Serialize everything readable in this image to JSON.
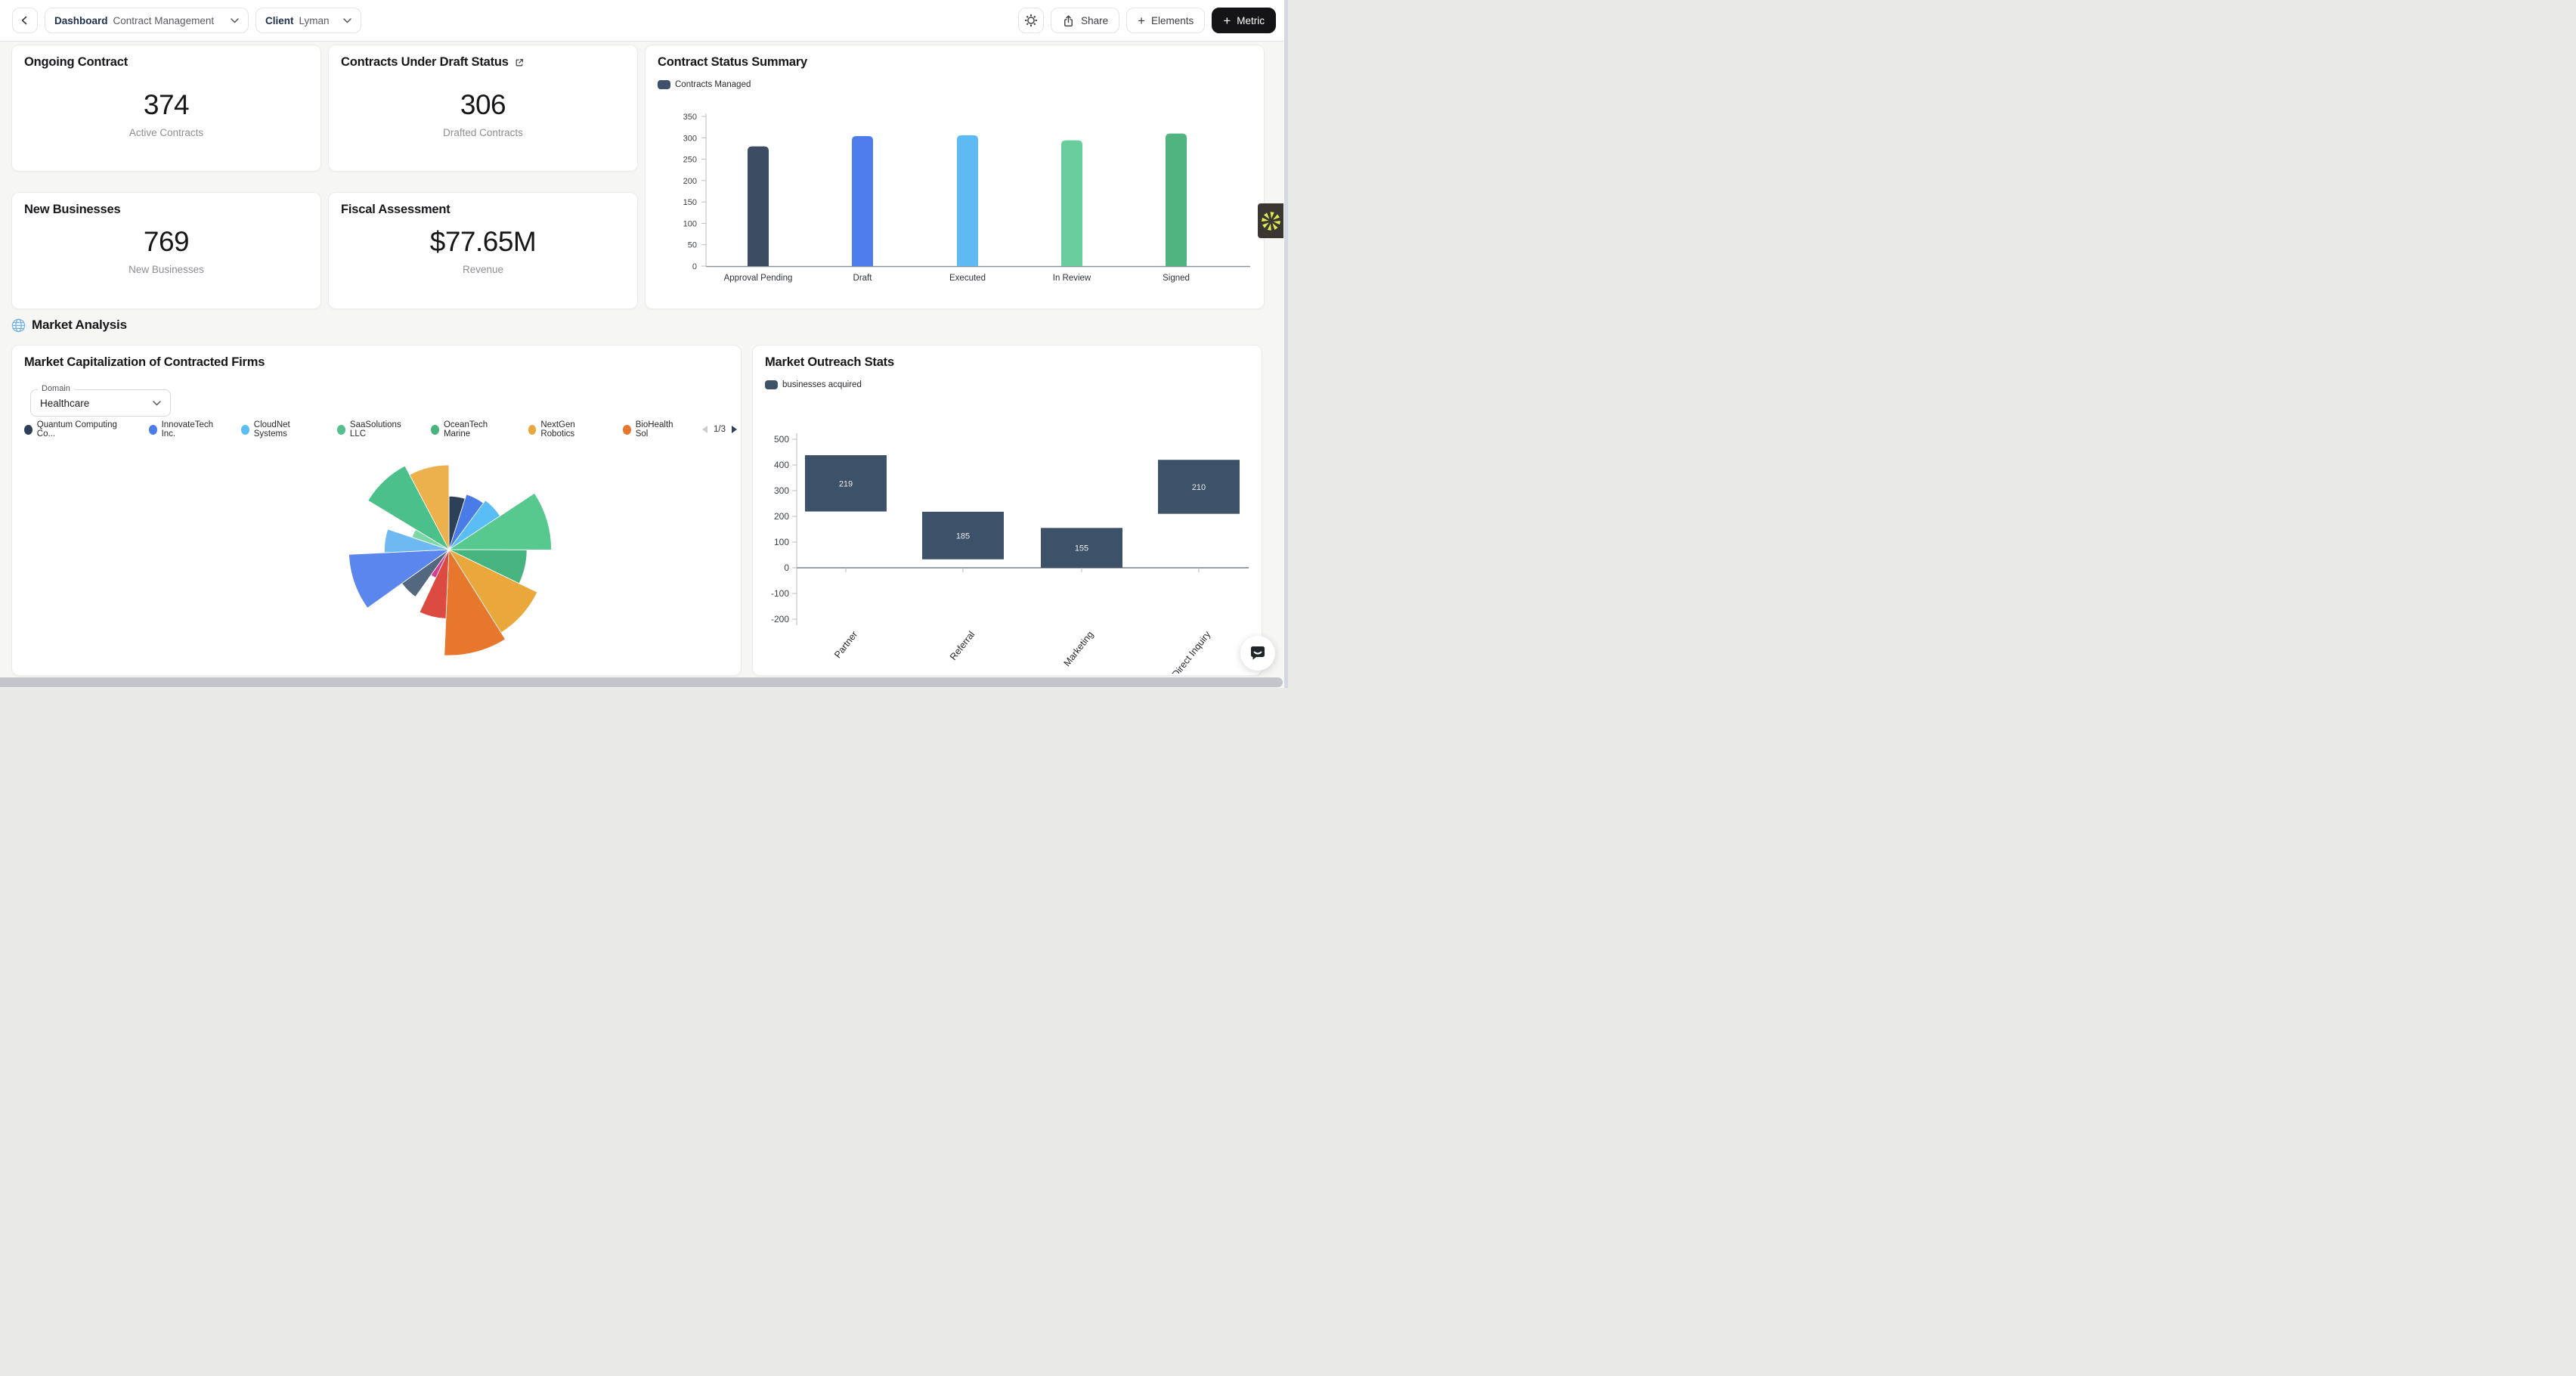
{
  "header": {
    "dashboard_label": "Dashboard",
    "dashboard_value": "Contract Management",
    "client_label": "Client",
    "client_value": "Lyman",
    "share_label": "Share",
    "elements_label": "Elements",
    "metric_label": "Metric",
    "plus_glyph": "+"
  },
  "section": {
    "title": "Market Analysis"
  },
  "stat_cards": [
    {
      "title": "Ongoing Contract",
      "value": "374",
      "caption": "Active Contracts"
    },
    {
      "title": "Contracts Under Draft Status",
      "value": "306",
      "caption": "Drafted Contracts"
    },
    {
      "title": "New Businesses",
      "value": "769",
      "caption": "New Businesses"
    },
    {
      "title": "Fiscal Assessment",
      "value": "$77.65M",
      "caption": "Revenue"
    }
  ],
  "chart_data": [
    {
      "id": "contract_status_summary",
      "type": "bar",
      "title": "Contract Status Summary",
      "legend": [
        {
          "label": "Contracts Managed",
          "color": "#3e5168"
        }
      ],
      "legend_position": "top-left",
      "grid": false,
      "categories": [
        "Approval Pending",
        "Draft",
        "Executed",
        "In Review",
        "Signed"
      ],
      "values": [
        280,
        304,
        306,
        294,
        310
      ],
      "colors": [
        "#3c4d63",
        "#4d7deb",
        "#60baf2",
        "#69ce9b",
        "#4fb480"
      ],
      "ylim": [
        0,
        350
      ],
      "yticks": [
        0,
        50,
        100,
        150,
        200,
        250,
        300,
        350
      ]
    },
    {
      "id": "market_capitalization_rose",
      "type": "pie",
      "subtype": "rose",
      "title": "Market Capitalization of Contracted Firms",
      "filter_label": "Domain",
      "filter_value": "Healthcare",
      "pagination": "1/3",
      "legend": [
        {
          "label": "Quantum Computing Co...",
          "color": "#2e4057"
        },
        {
          "label": "InnovateTech Inc.",
          "color": "#4a7ce8"
        },
        {
          "label": "CloudNet Systems",
          "color": "#5bbdf5"
        },
        {
          "label": "SaaSolutions LLC",
          "color": "#56c08d"
        },
        {
          "label": "OceanTech Marine",
          "color": "#47b37e"
        },
        {
          "label": "NextGen Robotics",
          "color": "#eaa83c"
        },
        {
          "label": "BioHealth Sol",
          "color": "#e8772e"
        }
      ],
      "slices": [
        {
          "color": "#2e4057",
          "value": 48
        },
        {
          "color": "#4a7ce8",
          "value": 52
        },
        {
          "color": "#5bbdf5",
          "value": 55
        },
        {
          "color": "#57c98f",
          "value": 92
        },
        {
          "color": "#47b37e",
          "value": 70
        },
        {
          "color": "#eaa83c",
          "value": 88
        },
        {
          "color": "#e8772e",
          "value": 95
        },
        {
          "color": "#dc4b41",
          "value": 62
        },
        {
          "color": "#d23f8f",
          "value": 28
        },
        {
          "color": "#53687e",
          "value": 52
        },
        {
          "color": "#5a86ee",
          "value": 90
        },
        {
          "color": "#6fb9f2",
          "value": 58
        },
        {
          "color": "#7cd9a6",
          "value": 35
        },
        {
          "color": "#4cc08a",
          "value": 85
        },
        {
          "color": "#ecb04c",
          "value": 76
        }
      ],
      "mode": "radius"
    },
    {
      "id": "market_outreach_stats",
      "type": "bar",
      "subtype": "floating",
      "title": "Market Outreach Stats",
      "legend": [
        {
          "label": "businesses acquired",
          "color": "#3d5168"
        }
      ],
      "bar_color": "#3d5168",
      "categories": [
        "Partner",
        "Referral",
        "Marketing",
        "Direct Inquiry"
      ],
      "bars": [
        {
          "category": "Partner",
          "label": "219",
          "start": 219,
          "end": 438
        },
        {
          "category": "Referral",
          "label": "185",
          "start": 33,
          "end": 218
        },
        {
          "category": "Marketing",
          "label": "155",
          "start": 0,
          "end": 155
        },
        {
          "category": "Direct Inquiry",
          "label": "210",
          "start": 210,
          "end": 420
        }
      ],
      "ylim": [
        -200,
        500
      ],
      "yticks": [
        500,
        400,
        300,
        200,
        100,
        0,
        -100,
        -200
      ]
    }
  ]
}
